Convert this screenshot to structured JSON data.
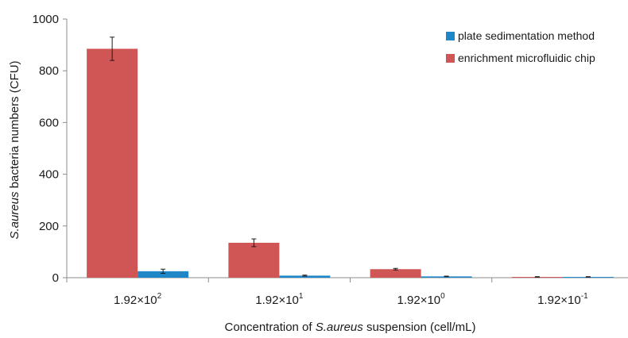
{
  "chart_data": {
    "type": "bar",
    "xlabel_parts": [
      "Concentration of ",
      "S.aureus",
      " suspension (cell/mL)"
    ],
    "ylabel_parts": [
      "S.aureus",
      " bacteria numbers (CFU)"
    ],
    "categories": [
      {
        "base": "1.92×10",
        "exp": "2"
      },
      {
        "base": "1.92×10",
        "exp": "1"
      },
      {
        "base": "1.92×10",
        "exp": "0"
      },
      {
        "base": "1.92×10",
        "exp": "-1"
      }
    ],
    "ylim": [
      0,
      1000
    ],
    "yticks": [
      0,
      200,
      400,
      600,
      800,
      1000
    ],
    "grid": false,
    "legend_position": "top-right",
    "series": [
      {
        "name": "enrichment microfluidic chip",
        "color": "#d05555",
        "values": [
          885,
          135,
          33,
          3
        ],
        "errors": [
          45,
          15,
          3,
          1
        ]
      },
      {
        "name": "plate sedimentation method",
        "color": "#1f86c8",
        "values": [
          25,
          8,
          5,
          3
        ],
        "errors": [
          8,
          2,
          1,
          1
        ]
      }
    ],
    "legend_order": [
      1,
      0
    ]
  }
}
